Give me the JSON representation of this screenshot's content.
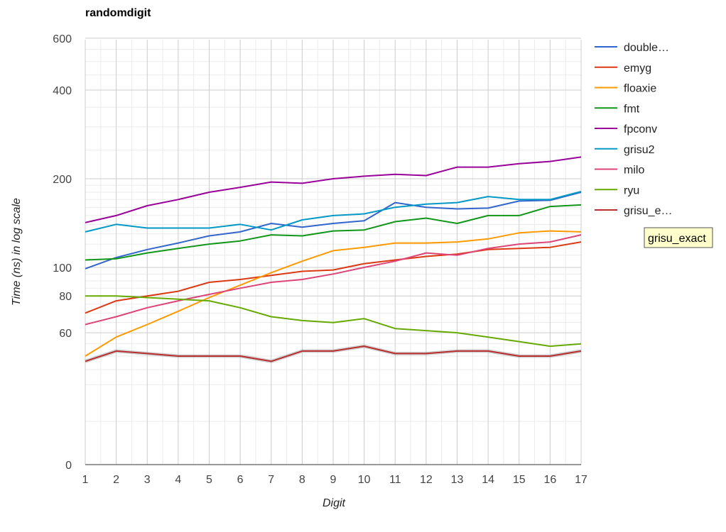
{
  "chart_data": {
    "type": "line",
    "title": "randomdigit",
    "xlabel": "Digit",
    "ylabel": "Time (ns) in log scale",
    "yscale": "log",
    "grid": true,
    "legend_position": "right",
    "x": [
      1,
      2,
      3,
      4,
      5,
      6,
      7,
      8,
      9,
      10,
      11,
      12,
      13,
      14,
      15,
      16,
      17
    ],
    "y_ticks": [
      {
        "value": 600,
        "label": "600"
      },
      {
        "value": 400,
        "label": "400"
      },
      {
        "value": 200,
        "label": "200"
      },
      {
        "value": 100,
        "label": "100"
      },
      {
        "value": 80,
        "label": "80"
      },
      {
        "value": 60,
        "label": "60"
      },
      {
        "value": 0,
        "label": "0"
      }
    ],
    "series": [
      {
        "name": "double…",
        "color": "#3366cc",
        "values": [
          99,
          108,
          115,
          121,
          128,
          132,
          141,
          137,
          141,
          144,
          166,
          160,
          158,
          159,
          168,
          169,
          180
        ]
      },
      {
        "name": "emyg",
        "color": "#dc3912",
        "values": [
          70,
          77,
          80,
          83,
          89,
          91,
          94,
          97,
          98,
          103,
          106,
          109,
          111,
          115,
          116,
          117,
          122
        ]
      },
      {
        "name": "floaxie",
        "color": "#ff9900",
        "values": [
          50,
          58,
          64,
          71,
          79,
          87,
          96,
          105,
          114,
          117,
          121,
          121,
          122,
          125,
          131,
          133,
          132
        ]
      },
      {
        "name": "fmt",
        "color": "#109618",
        "values": [
          106,
          107,
          112,
          116,
          120,
          123,
          129,
          128,
          133,
          134,
          143,
          147,
          141,
          150,
          150,
          161,
          163
        ]
      },
      {
        "name": "fpconv",
        "color": "#990099",
        "values": [
          142,
          150,
          162,
          170,
          180,
          187,
          195,
          193,
          200,
          204,
          207,
          205,
          219,
          219,
          225,
          229,
          237
        ]
      },
      {
        "name": "grisu2",
        "color": "#0099c6",
        "values": [
          132,
          140,
          136,
          136,
          136,
          140,
          134,
          145,
          150,
          152,
          160,
          164,
          166,
          174,
          170,
          170,
          181
        ]
      },
      {
        "name": "milo",
        "color": "#dd4477",
        "values": [
          64,
          68,
          73,
          77,
          81,
          85,
          89,
          91,
          95,
          100,
          105,
          112,
          110,
          116,
          120,
          122,
          129
        ]
      },
      {
        "name": "ryu",
        "color": "#66aa00",
        "values": [
          80,
          80,
          79,
          78,
          77,
          73,
          68,
          66,
          65,
          67,
          62,
          61,
          60,
          58,
          56,
          54,
          55
        ]
      },
      {
        "name": "grisu_e…",
        "color": "#b82e2e",
        "full_name": "grisu_exact",
        "values": [
          48,
          52,
          51,
          50,
          50,
          50,
          48,
          52,
          52,
          54,
          51,
          51,
          52,
          52,
          50,
          50,
          52
        ]
      }
    ],
    "tooltip": "grisu_exact"
  }
}
